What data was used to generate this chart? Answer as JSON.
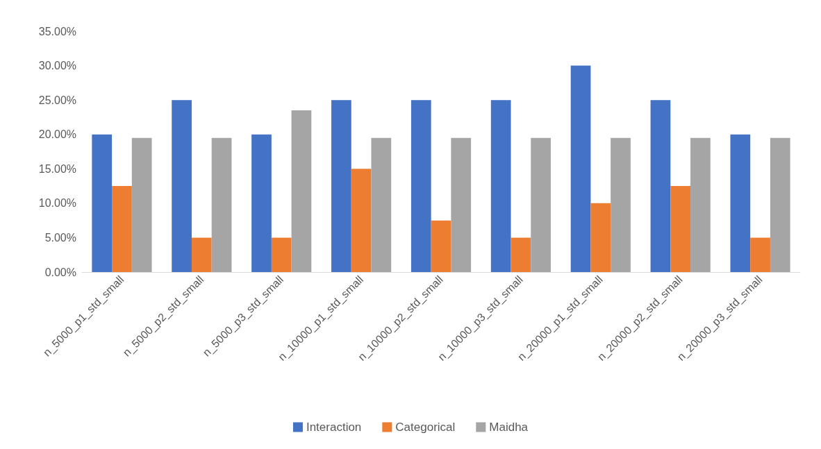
{
  "chart_data": {
    "type": "bar",
    "categories": [
      "n_5000_p1_std_small",
      "n_5000_p2_std_small",
      "n_5000_p3_std_small",
      "n_10000_p1_std_small",
      "n_10000_p2_std_small",
      "n_10000_p3_std_small",
      "n_20000_p1_std_small",
      "n_20000_p2_std_small",
      "n_20000_p3_std_small"
    ],
    "series": [
      {
        "name": "Interaction",
        "color": "#4472c4",
        "values": [
          20,
          25,
          20,
          25,
          25,
          25,
          30,
          25,
          20
        ]
      },
      {
        "name": "Categorical",
        "color": "#ed7d31",
        "values": [
          12.5,
          5,
          5,
          15,
          7.5,
          5,
          10,
          12.5,
          5
        ]
      },
      {
        "name": "Maidha",
        "color": "#a5a5a5",
        "values": [
          19.5,
          19.5,
          23.5,
          19.5,
          19.5,
          19.5,
          19.5,
          19.5,
          19.5
        ]
      }
    ],
    "ylim": [
      0,
      35
    ],
    "yticks": [
      {
        "value": 0,
        "label": "0.00%"
      },
      {
        "value": 5,
        "label": "5.00%"
      },
      {
        "value": 10,
        "label": "10.00%"
      },
      {
        "value": 15,
        "label": "15.00%"
      },
      {
        "value": 20,
        "label": "20.00%"
      },
      {
        "value": 25,
        "label": "25.00%"
      },
      {
        "value": 30,
        "label": "30.00%"
      },
      {
        "value": 35,
        "label": "35.00%"
      }
    ],
    "grid": false,
    "legend": "bottom"
  }
}
